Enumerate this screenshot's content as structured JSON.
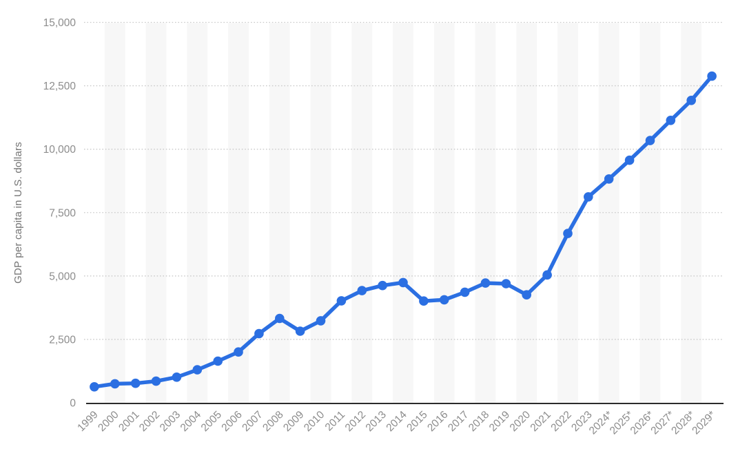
{
  "chart_data": {
    "type": "line",
    "title": "",
    "xlabel": "",
    "ylabel": "GDP per capita in U.S. dollars",
    "categories": [
      "1999",
      "2000",
      "2001",
      "2002",
      "2003",
      "2004",
      "2005",
      "2006",
      "2007",
      "2008",
      "2009",
      "2010",
      "2011",
      "2012",
      "2013",
      "2014",
      "2015",
      "2016",
      "2017",
      "2018",
      "2019",
      "2020",
      "2021",
      "2022",
      "2023",
      "2024*",
      "2025*",
      "2026*",
      "2027*",
      "2028*",
      "2029*"
    ],
    "values": [
      629,
      749,
      769,
      853,
      1011,
      1301,
      1642,
      2004,
      2726,
      3325,
      2823,
      3233,
      4022,
      4422,
      4624,
      4739,
      4014,
      4062,
      4359,
      4722,
      4696,
      4256,
      5042,
      6675,
      8120,
      8825,
      9566,
      10342,
      11137,
      11923,
      12879
    ],
    "ylim": [
      0,
      15000
    ],
    "yticks": [
      0,
      2500,
      5000,
      7500,
      10000,
      12500,
      15000
    ],
    "ytick_labels": [
      "0",
      "2,500",
      "5,000",
      "7,500",
      "10,000",
      "12,500",
      "15,000"
    ],
    "grid": "horizontal-dotted",
    "legend": null,
    "notes": "categories marked with * are forecast years"
  },
  "style": {
    "line_color": "#2b6fe2",
    "marker_color": "#2b6fe2",
    "band_color": "#f7f7f7",
    "grid_color": "#c9c9c9",
    "axis_color": "#2b2b2b",
    "tick_label_color": "#8c8c8c",
    "ylabel_color": "#747474",
    "background": "#ffffff"
  }
}
